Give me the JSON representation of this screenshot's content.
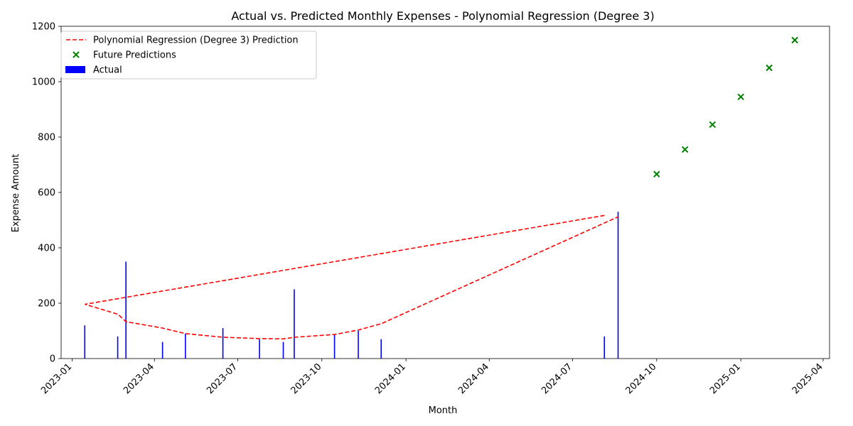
{
  "chart_data": {
    "type": "line",
    "title": "Actual vs. Predicted Monthly Expenses - Polynomial Regression (Degree 3)",
    "xlabel": "Month",
    "ylabel": "Expense Amount",
    "ylim": [
      0,
      1200
    ],
    "xlim": [
      "2022-12-20",
      "2025-04-08"
    ],
    "x_ticks": [
      "2023-01",
      "2023-04",
      "2023-07",
      "2023-10",
      "2024-01",
      "2024-04",
      "2024-07",
      "2024-10",
      "2025-01",
      "2025-04"
    ],
    "x_tick_dates": [
      "2023-01-01",
      "2023-04-01",
      "2023-07-01",
      "2023-10-01",
      "2024-01-01",
      "2024-04-01",
      "2024-07-01",
      "2024-10-01",
      "2025-01-01",
      "2025-04-01"
    ],
    "y_ticks": [
      0,
      200,
      400,
      600,
      800,
      1000,
      1200
    ],
    "legend": {
      "placement": "upper-left",
      "entries": [
        "Polynomial Regression (Degree 3) Prediction",
        "Future Predictions",
        "Actual"
      ]
    },
    "series": [
      {
        "name": "Actual",
        "type": "bar",
        "color": "#0000ff",
        "dates": [
          "2023-01-15",
          "2023-02-20",
          "2023-03-01",
          "2023-04-10",
          "2023-05-05",
          "2023-06-15",
          "2023-07-25",
          "2023-08-20",
          "2023-09-01",
          "2023-10-15",
          "2023-11-10",
          "2023-12-05",
          "2024-08-05",
          "2024-08-20"
        ],
        "values": [
          120,
          80,
          350,
          60,
          90,
          110,
          70,
          60,
          250,
          85,
          100,
          70,
          80,
          530
        ]
      },
      {
        "name": "Polynomial Regression (Degree 3) Prediction",
        "type": "line",
        "color": "#ff0000",
        "linestyle": "dashed",
        "dates": [
          "2024-08-05",
          "2023-01-15",
          "2023-02-20",
          "2023-03-01",
          "2023-04-10",
          "2023-05-05",
          "2023-06-15",
          "2023-07-25",
          "2023-08-20",
          "2023-09-01",
          "2023-10-15",
          "2023-11-10",
          "2023-12-05",
          "2024-08-20"
        ],
        "values": [
          517,
          196,
          160,
          133,
          110,
          90,
          77,
          72,
          71,
          77,
          87,
          103,
          126,
          512
        ]
      },
      {
        "name": "Future Predictions",
        "type": "scatter",
        "color": "#008000",
        "marker": "x",
        "dates": [
          "2024-10-01",
          "2024-11-01",
          "2024-12-01",
          "2025-01-01",
          "2025-02-01",
          "2025-03-01"
        ],
        "values": [
          666,
          755,
          845,
          945,
          1050,
          1150
        ]
      }
    ]
  }
}
